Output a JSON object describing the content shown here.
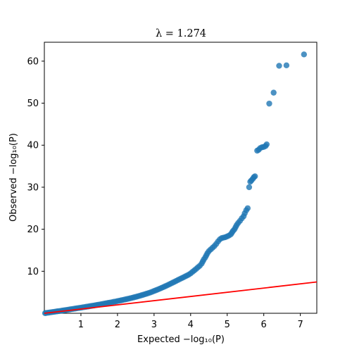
{
  "chart_data": {
    "type": "scatter",
    "title": "λ = 1.274",
    "xlabel": "Expected −log₁₀(P)",
    "ylabel": "Observed −log₁₀(P)",
    "xlim": [
      0,
      7.45
    ],
    "ylim": [
      0,
      64.5
    ],
    "xticks": [
      1,
      2,
      3,
      4,
      5,
      6,
      7
    ],
    "yticks": [
      10,
      20,
      30,
      40,
      50,
      60
    ],
    "grid": false,
    "point_color": "#1f77b4",
    "line_color": "#ff0000",
    "reference_line": {
      "x": [
        0,
        7.45
      ],
      "y": [
        0,
        7.45
      ]
    },
    "points": [
      [
        0.02,
        0.03
      ],
      [
        0.05,
        0.07
      ],
      [
        0.1,
        0.13
      ],
      [
        0.15,
        0.2
      ],
      [
        0.2,
        0.26
      ],
      [
        0.25,
        0.33
      ],
      [
        0.3,
        0.39
      ],
      [
        0.35,
        0.46
      ],
      [
        0.4,
        0.52
      ],
      [
        0.45,
        0.58
      ],
      [
        0.5,
        0.65
      ],
      [
        0.55,
        0.72
      ],
      [
        0.6,
        0.79
      ],
      [
        0.65,
        0.85
      ],
      [
        0.7,
        0.92
      ],
      [
        0.75,
        0.99
      ],
      [
        0.8,
        1.06
      ],
      [
        0.85,
        1.13
      ],
      [
        0.9,
        1.2
      ],
      [
        0.95,
        1.27
      ],
      [
        1.0,
        1.33
      ],
      [
        1.05,
        1.41
      ],
      [
        1.1,
        1.48
      ],
      [
        1.15,
        1.55
      ],
      [
        1.2,
        1.62
      ],
      [
        1.25,
        1.7
      ],
      [
        1.3,
        1.77
      ],
      [
        1.35,
        1.84
      ],
      [
        1.4,
        1.92
      ],
      [
        1.45,
        2.0
      ],
      [
        1.5,
        2.07
      ],
      [
        1.55,
        2.15
      ],
      [
        1.6,
        2.23
      ],
      [
        1.65,
        2.31
      ],
      [
        1.7,
        2.39
      ],
      [
        1.75,
        2.47
      ],
      [
        1.8,
        2.55
      ],
      [
        1.85,
        2.63
      ],
      [
        1.9,
        2.72
      ],
      [
        1.95,
        2.8
      ],
      [
        2.0,
        2.9
      ],
      [
        2.05,
        2.99
      ],
      [
        2.1,
        3.08
      ],
      [
        2.15,
        3.18
      ],
      [
        2.2,
        3.27
      ],
      [
        2.25,
        3.37
      ],
      [
        2.3,
        3.47
      ],
      [
        2.35,
        3.57
      ],
      [
        2.4,
        3.68
      ],
      [
        2.45,
        3.79
      ],
      [
        2.5,
        3.9
      ],
      [
        2.55,
        4.02
      ],
      [
        2.6,
        4.14
      ],
      [
        2.65,
        4.27
      ],
      [
        2.7,
        4.4
      ],
      [
        2.75,
        4.53
      ],
      [
        2.8,
        4.67
      ],
      [
        2.85,
        4.81
      ],
      [
        2.9,
        4.96
      ],
      [
        2.95,
        5.12
      ],
      [
        3.0,
        5.3
      ],
      [
        3.05,
        5.47
      ],
      [
        3.1,
        5.65
      ],
      [
        3.15,
        5.83
      ],
      [
        3.2,
        6.02
      ],
      [
        3.25,
        6.21
      ],
      [
        3.3,
        6.41
      ],
      [
        3.35,
        6.61
      ],
      [
        3.4,
        6.82
      ],
      [
        3.45,
        7.03
      ],
      [
        3.5,
        7.25
      ],
      [
        3.55,
        7.46
      ],
      [
        3.6,
        7.68
      ],
      [
        3.65,
        7.9
      ],
      [
        3.7,
        8.12
      ],
      [
        3.75,
        8.33
      ],
      [
        3.8,
        8.54
      ],
      [
        3.85,
        8.76
      ],
      [
        3.9,
        8.98
      ],
      [
        3.95,
        9.2
      ],
      [
        4.0,
        9.5
      ],
      [
        4.05,
        9.85
      ],
      [
        4.1,
        10.2
      ],
      [
        4.15,
        10.55
      ],
      [
        4.2,
        10.95
      ],
      [
        4.25,
        11.3
      ],
      [
        4.3,
        11.8
      ],
      [
        4.33,
        12.3
      ],
      [
        4.36,
        12.8
      ],
      [
        4.4,
        13.3
      ],
      [
        4.43,
        13.8
      ],
      [
        4.46,
        14.3
      ],
      [
        4.5,
        14.8
      ],
      [
        4.55,
        15.2
      ],
      [
        4.6,
        15.6
      ],
      [
        4.65,
        16.0
      ],
      [
        4.7,
        16.5
      ],
      [
        4.75,
        17.1
      ],
      [
        4.8,
        17.6
      ],
      [
        4.85,
        17.9
      ],
      [
        4.9,
        18.0
      ],
      [
        4.95,
        18.1
      ],
      [
        5.0,
        18.3
      ],
      [
        5.05,
        18.5
      ],
      [
        5.1,
        18.8
      ],
      [
        5.13,
        19.2
      ],
      [
        5.16,
        19.6
      ],
      [
        5.2,
        20.0
      ],
      [
        5.23,
        20.5
      ],
      [
        5.26,
        21.0
      ],
      [
        5.3,
        21.5
      ],
      [
        5.35,
        22.0
      ],
      [
        5.4,
        22.6
      ],
      [
        5.45,
        23.1
      ],
      [
        5.48,
        23.8
      ],
      [
        5.52,
        24.5
      ],
      [
        5.56,
        25.0
      ],
      [
        5.6,
        30.0
      ],
      [
        5.63,
        31.3
      ],
      [
        5.66,
        31.6
      ],
      [
        5.7,
        32.0
      ],
      [
        5.73,
        32.4
      ],
      [
        5.76,
        32.6
      ],
      [
        5.82,
        38.7
      ],
      [
        5.86,
        38.9
      ],
      [
        5.9,
        39.3
      ],
      [
        5.95,
        39.5
      ],
      [
        6.0,
        39.6
      ],
      [
        6.05,
        39.8
      ],
      [
        6.08,
        40.2
      ],
      [
        6.15,
        49.9
      ],
      [
        6.27,
        52.5
      ],
      [
        6.42,
        58.9
      ],
      [
        6.62,
        59.0
      ],
      [
        7.1,
        61.6
      ]
    ]
  }
}
